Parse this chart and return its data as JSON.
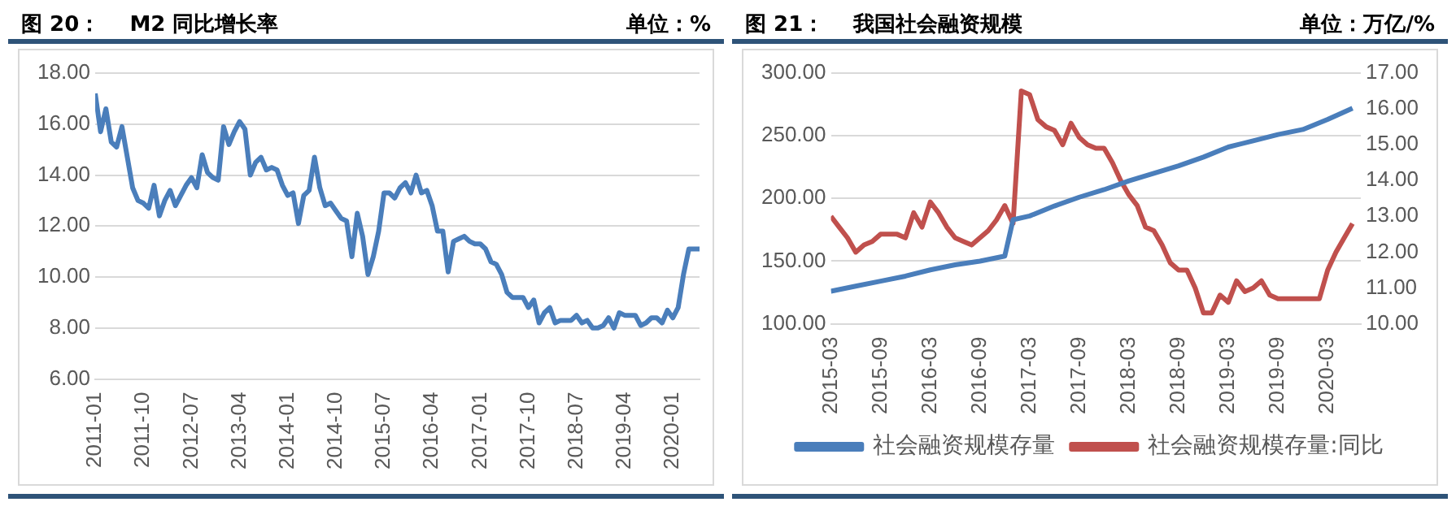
{
  "chart_data": [
    {
      "type": "line",
      "title": "图 20：    M2 同比增长率",
      "subtitle": "单位：%",
      "x": [
        "2011-01",
        "2011-02",
        "2011-03",
        "2011-04",
        "2011-05",
        "2011-06",
        "2011-07",
        "2011-08",
        "2011-09",
        "2011-10",
        "2011-11",
        "2011-12",
        "2012-01",
        "2012-02",
        "2012-03",
        "2012-04",
        "2012-05",
        "2012-06",
        "2012-07",
        "2012-08",
        "2012-09",
        "2012-10",
        "2012-11",
        "2012-12",
        "2013-01",
        "2013-02",
        "2013-03",
        "2013-04",
        "2013-05",
        "2013-06",
        "2013-07",
        "2013-08",
        "2013-09",
        "2013-10",
        "2013-11",
        "2013-12",
        "2014-01",
        "2014-02",
        "2014-03",
        "2014-04",
        "2014-05",
        "2014-06",
        "2014-07",
        "2014-08",
        "2014-09",
        "2014-10",
        "2014-11",
        "2014-12",
        "2015-01",
        "2015-02",
        "2015-03",
        "2015-04",
        "2015-05",
        "2015-06",
        "2015-07",
        "2015-08",
        "2015-09",
        "2015-10",
        "2015-11",
        "2015-12",
        "2016-01",
        "2016-02",
        "2016-03",
        "2016-04",
        "2016-05",
        "2016-06",
        "2016-07",
        "2016-08",
        "2016-09",
        "2016-10",
        "2016-11",
        "2016-12",
        "2017-01",
        "2017-02",
        "2017-03",
        "2017-04",
        "2017-05",
        "2017-06",
        "2017-07",
        "2017-08",
        "2017-09",
        "2017-10",
        "2017-11",
        "2017-12",
        "2018-01",
        "2018-02",
        "2018-03",
        "2018-04",
        "2018-05",
        "2018-06",
        "2018-07",
        "2018-08",
        "2018-09",
        "2018-10",
        "2018-11",
        "2018-12",
        "2019-01",
        "2019-02",
        "2019-03",
        "2019-04",
        "2019-05",
        "2019-06",
        "2019-07",
        "2019-08",
        "2019-09",
        "2019-10",
        "2019-11",
        "2019-12",
        "2020-01",
        "2020-02",
        "2020-03",
        "2020-04",
        "2020-05",
        "2020-06"
      ],
      "series": [
        {
          "color": "#4a7ebb",
          "values": [
            17.2,
            15.7,
            16.6,
            15.3,
            15.1,
            15.9,
            14.7,
            13.5,
            13.0,
            12.9,
            12.7,
            13.6,
            12.4,
            13.0,
            13.4,
            12.8,
            13.2,
            13.6,
            13.9,
            13.5,
            14.8,
            14.1,
            13.9,
            13.8,
            15.9,
            15.2,
            15.7,
            16.1,
            15.8,
            14.0,
            14.5,
            14.7,
            14.2,
            14.3,
            14.2,
            13.6,
            13.2,
            13.3,
            12.1,
            13.2,
            13.4,
            14.7,
            13.5,
            12.8,
            12.9,
            12.6,
            12.3,
            12.2,
            10.8,
            12.5,
            11.6,
            10.1,
            10.8,
            11.8,
            13.3,
            13.3,
            13.1,
            13.5,
            13.7,
            13.3,
            14.0,
            13.3,
            13.4,
            12.8,
            11.8,
            11.8,
            10.2,
            11.4,
            11.5,
            11.6,
            11.4,
            11.3,
            11.3,
            11.1,
            10.6,
            10.5,
            10.1,
            9.4,
            9.2,
            9.2,
            9.2,
            8.8,
            9.1,
            8.2,
            8.6,
            8.8,
            8.2,
            8.3,
            8.3,
            8.3,
            8.5,
            8.2,
            8.3,
            8.0,
            8.0,
            8.1,
            8.4,
            8.0,
            8.6,
            8.5,
            8.5,
            8.5,
            8.1,
            8.2,
            8.4,
            8.4,
            8.2,
            8.7,
            8.4,
            8.8,
            10.1,
            11.1,
            11.1,
            11.1
          ]
        }
      ],
      "xlim": [
        "2011-01",
        "2020-06"
      ],
      "xticks": [
        "2011-01",
        "2011-10",
        "2012-07",
        "2013-04",
        "2014-01",
        "2014-10",
        "2015-07",
        "2016-04",
        "2017-01",
        "2017-10",
        "2018-07",
        "2019-04",
        "2020-01"
      ],
      "ylim": [
        6,
        18
      ],
      "yticks": [
        {
          "value": 6,
          "label": "6.00"
        },
        {
          "value": 8,
          "label": "8.00"
        },
        {
          "value": 10,
          "label": "10.00"
        },
        {
          "value": 12,
          "label": "12.00"
        },
        {
          "value": 14,
          "label": "14.00"
        },
        {
          "value": 16,
          "label": "16.00"
        },
        {
          "value": 18,
          "label": "18.00"
        }
      ],
      "grid": "y",
      "legend": false,
      "marker": "none"
    },
    {
      "type": "line",
      "title": "图 21：    我国社会融资规模",
      "subtitle": "单位：万亿/%",
      "series": [
        {
          "name": "社会融资规模存量",
          "color": "#4a7ebb",
          "x": [
            "2015-03",
            "2015-06",
            "2015-09",
            "2015-12",
            "2016-03",
            "2016-06",
            "2016-09",
            "2016-12",
            "2017-01",
            "2017-03",
            "2017-06",
            "2017-09",
            "2017-12",
            "2018-03",
            "2018-06",
            "2018-09",
            "2018-12",
            "2019-03",
            "2019-06",
            "2019-09",
            "2019-12",
            "2020-03",
            "2020-06"
          ],
          "values": [
            126,
            130,
            134,
            138,
            143,
            147,
            150,
            154,
            183,
            186,
            194,
            201,
            207,
            214,
            220,
            226,
            233,
            241,
            246,
            251,
            255,
            263,
            272
          ]
        },
        {
          "name": "社会融资规模存量:同比",
          "color": "#c0504d",
          "axis": "y2",
          "x": [
            "2015-03",
            "2015-04",
            "2015-05",
            "2015-06",
            "2015-07",
            "2015-08",
            "2015-09",
            "2015-10",
            "2015-11",
            "2015-12",
            "2016-01",
            "2016-02",
            "2016-03",
            "2016-04",
            "2016-05",
            "2016-06",
            "2016-07",
            "2016-08",
            "2016-09",
            "2016-10",
            "2016-11",
            "2016-12",
            "2017-01",
            "2017-02",
            "2017-03",
            "2017-04",
            "2017-05",
            "2017-06",
            "2017-07",
            "2017-08",
            "2017-09",
            "2017-10",
            "2017-11",
            "2017-12",
            "2018-01",
            "2018-02",
            "2018-03",
            "2018-04",
            "2018-05",
            "2018-06",
            "2018-07",
            "2018-08",
            "2018-09",
            "2018-10",
            "2018-11",
            "2018-12",
            "2019-01",
            "2019-02",
            "2019-03",
            "2019-04",
            "2019-05",
            "2019-06",
            "2019-07",
            "2019-08",
            "2019-09",
            "2019-10",
            "2019-11",
            "2019-12",
            "2020-01",
            "2020-02",
            "2020-03",
            "2020-04",
            "2020-05",
            "2020-06"
          ],
          "values": [
            13.0,
            12.7,
            12.4,
            12.0,
            12.2,
            12.3,
            12.5,
            12.5,
            12.5,
            12.4,
            13.1,
            12.7,
            13.4,
            13.1,
            12.7,
            12.4,
            12.3,
            12.2,
            12.4,
            12.6,
            12.9,
            13.3,
            12.8,
            16.5,
            16.4,
            15.7,
            15.5,
            15.4,
            15.0,
            15.6,
            15.2,
            15.0,
            14.9,
            14.9,
            14.5,
            14.0,
            13.6,
            13.3,
            12.7,
            12.6,
            12.2,
            11.7,
            11.5,
            11.5,
            11.0,
            10.3,
            10.3,
            10.8,
            10.6,
            11.2,
            10.9,
            11.0,
            11.2,
            10.8,
            10.7,
            10.7,
            10.7,
            10.7,
            10.7,
            10.7,
            11.5,
            12.0,
            12.4,
            12.8
          ]
        }
      ],
      "xlim": [
        "2015-03",
        "2020-07"
      ],
      "xticks": [
        "2015-03",
        "2015-09",
        "2016-03",
        "2016-09",
        "2017-03",
        "2017-09",
        "2018-03",
        "2018-09",
        "2019-03",
        "2019-09",
        "2020-03"
      ],
      "ylim": [
        100,
        300
      ],
      "yticks": [
        {
          "value": 100,
          "label": "100.00"
        },
        {
          "value": 150,
          "label": "150.00"
        },
        {
          "value": 200,
          "label": "200.00"
        },
        {
          "value": 250,
          "label": "250.00"
        },
        {
          "value": 300,
          "label": "300.00"
        }
      ],
      "y2lim": [
        10,
        17
      ],
      "y2ticks": [
        {
          "value": 10,
          "label": "10.00"
        },
        {
          "value": 11,
          "label": "11.00"
        },
        {
          "value": 12,
          "label": "12.00"
        },
        {
          "value": 13,
          "label": "13.00"
        },
        {
          "value": 14,
          "label": "14.00"
        },
        {
          "value": 15,
          "label": "15.00"
        },
        {
          "value": 16,
          "label": "16.00"
        },
        {
          "value": 17,
          "label": "17.00"
        }
      ],
      "grid": "y",
      "legend": "bottom",
      "marker": "none"
    }
  ]
}
